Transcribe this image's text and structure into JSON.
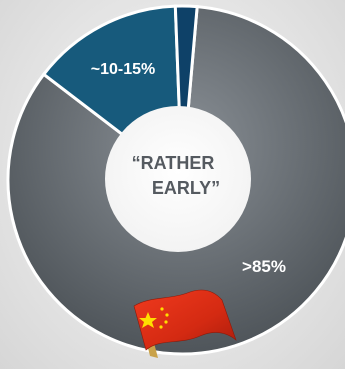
{
  "chart_data": {
    "type": "pie",
    "style": "donut",
    "center_label_lines": [
      "“RATHER",
      "EARLY”"
    ],
    "slices": [
      {
        "label": ">85%",
        "value": 84,
        "color": "#5b6165"
      },
      {
        "label": "~10-15%",
        "value": 14,
        "color": "#175a7c"
      },
      {
        "label": "",
        "value": 2,
        "color": "#0e4168"
      }
    ],
    "flag": {
      "name": "china-flag-icon",
      "colors": [
        "#de2910",
        "#ffde00"
      ]
    }
  }
}
